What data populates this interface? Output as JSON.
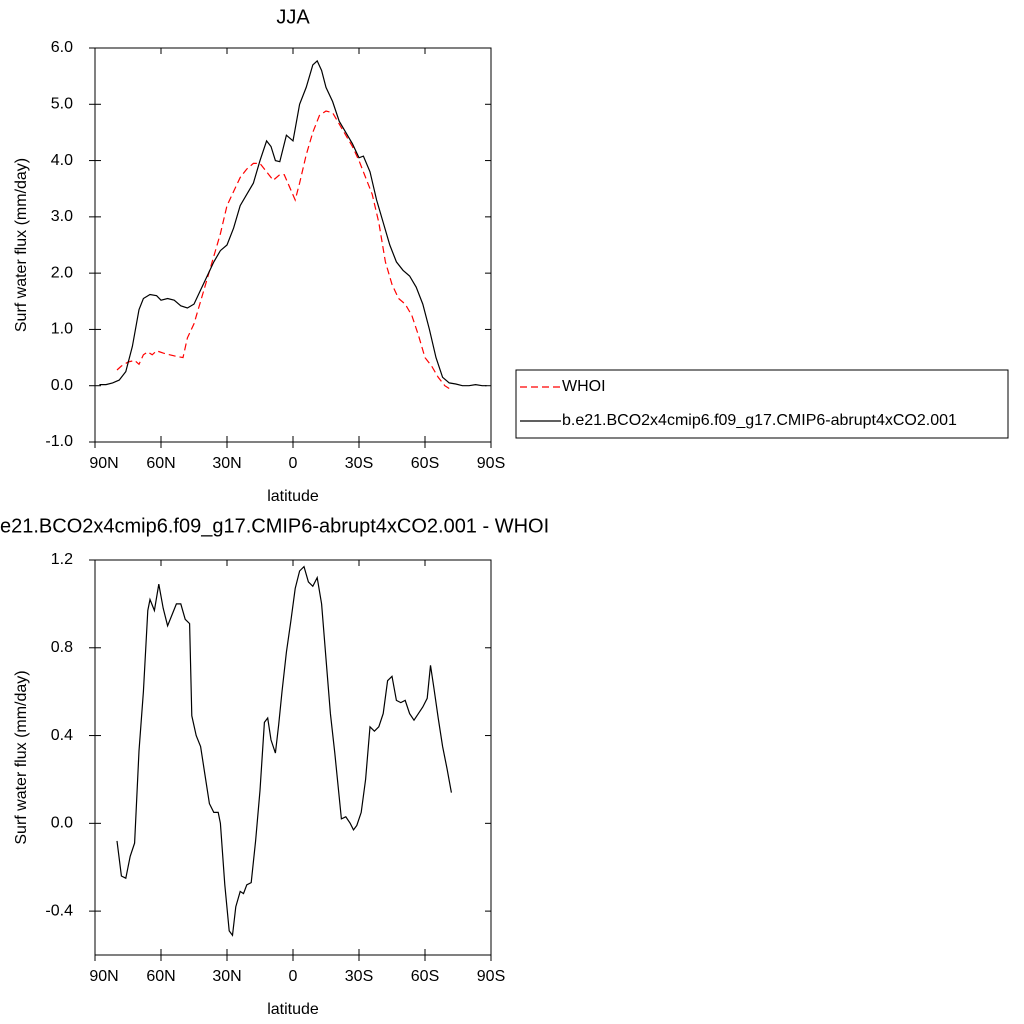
{
  "chart_data": [
    {
      "type": "line",
      "title": "JJA",
      "x_label": "latitude",
      "y_label": "Surf water flux (mm/day)",
      "xlim": [
        90,
        -90
      ],
      "ylim": [
        -1.0,
        6.0
      ],
      "xticks": [
        {
          "value": 90,
          "label": "90N"
        },
        {
          "value": 60,
          "label": "60N"
        },
        {
          "value": 30,
          "label": "30N"
        },
        0,
        {
          "value": -30,
          "label": "30S"
        },
        {
          "value": -60,
          "label": "60S"
        },
        {
          "value": -90,
          "label": "90S"
        }
      ],
      "yticks": [
        {
          "value": -1,
          "label": "-1.0"
        },
        {
          "value": 0,
          "label": "0.0"
        },
        {
          "value": 1,
          "label": "1.0"
        },
        {
          "value": 2,
          "label": "2.0"
        },
        {
          "value": 3,
          "label": "3.0"
        },
        {
          "value": 4,
          "label": "4.0"
        },
        {
          "value": 5,
          "label": "5.0"
        },
        {
          "value": 6,
          "label": "6.0"
        }
      ],
      "legend": "right",
      "series": [
        {
          "name": "WHOI",
          "color": "#ff0000",
          "line_style": "dashed",
          "x": [
            80,
            78,
            75,
            72,
            70,
            68,
            66,
            64,
            62,
            59,
            56,
            53,
            50,
            48,
            45,
            42,
            39,
            36,
            33,
            30,
            27,
            24,
            21,
            18,
            15,
            12,
            9,
            6,
            4,
            -1,
            -3,
            -6,
            -9,
            -12,
            -15,
            -18,
            -21,
            -24,
            -27,
            -30,
            -33,
            -36,
            -39,
            -42,
            -45,
            -48,
            -51,
            -54,
            -57,
            -60,
            -63,
            -66,
            -69,
            -71
          ],
          "values": [
            0.28,
            0.35,
            0.42,
            0.45,
            0.38,
            0.55,
            0.6,
            0.55,
            0.62,
            0.58,
            0.55,
            0.52,
            0.5,
            0.85,
            1.1,
            1.5,
            1.9,
            2.3,
            2.7,
            3.2,
            3.45,
            3.7,
            3.85,
            3.95,
            3.95,
            3.8,
            3.65,
            3.75,
            3.75,
            3.3,
            3.6,
            4.1,
            4.5,
            4.8,
            4.88,
            4.85,
            4.65,
            4.45,
            4.25,
            4.0,
            3.7,
            3.4,
            2.9,
            2.2,
            1.8,
            1.55,
            1.45,
            1.25,
            0.9,
            0.5,
            0.35,
            0.15,
            0.0,
            -0.05
          ]
        },
        {
          "name": "b.e21.BCO2x4cmip6.f09_g17.CMIP6-abrupt4xCO2.001",
          "color": "#000000",
          "line_style": "solid",
          "x": [
            88,
            85,
            82,
            79,
            76,
            73,
            70,
            68,
            65,
            62,
            60,
            57,
            54,
            51,
            48,
            45,
            42,
            39,
            36,
            33,
            30,
            27,
            24,
            21,
            18,
            15,
            12,
            10,
            8,
            6,
            3,
            0,
            -3,
            -6,
            -9,
            -11,
            -13,
            -15,
            -18,
            -21,
            -24,
            -27,
            -30,
            -32,
            -35,
            -38,
            -41,
            -44,
            -47,
            -50,
            -53,
            -56,
            -59,
            -62,
            -65,
            -68,
            -71,
            -74,
            -77,
            -80,
            -83,
            -86,
            -88
          ],
          "values": [
            0.02,
            0.02,
            0.05,
            0.1,
            0.25,
            0.7,
            1.35,
            1.55,
            1.62,
            1.6,
            1.52,
            1.55,
            1.52,
            1.42,
            1.38,
            1.45,
            1.7,
            1.95,
            2.2,
            2.4,
            2.5,
            2.8,
            3.2,
            3.4,
            3.6,
            4.0,
            4.35,
            4.25,
            4.0,
            3.98,
            4.45,
            4.35,
            5.0,
            5.3,
            5.7,
            5.77,
            5.6,
            5.3,
            5.05,
            4.7,
            4.5,
            4.3,
            4.05,
            4.08,
            3.8,
            3.3,
            2.9,
            2.5,
            2.2,
            2.05,
            1.95,
            1.75,
            1.45,
            1.0,
            0.5,
            0.15,
            0.05,
            0.03,
            0.0,
            0.0,
            0.02,
            0.0,
            0.0
          ]
        }
      ]
    },
    {
      "type": "line",
      "title": "e21.BCO2x4cmip6.f09_g17.CMIP6-abrupt4xCO2.001 - WHOI",
      "x_label": "latitude",
      "y_label": "Surf water flux (mm/day)",
      "xlim": [
        90,
        -90
      ],
      "ylim": [
        -0.6,
        1.2
      ],
      "xticks": [
        {
          "value": 90,
          "label": "90N"
        },
        {
          "value": 60,
          "label": "60N"
        },
        {
          "value": 30,
          "label": "30N"
        },
        0,
        {
          "value": -30,
          "label": "30S"
        },
        {
          "value": -60,
          "label": "60S"
        },
        {
          "value": -90,
          "label": "90S"
        }
      ],
      "yticks": [
        -0.4,
        {
          "value": 0,
          "label": "0.0"
        },
        0.4,
        0.8,
        1.2
      ],
      "color": "#000000",
      "x": [
        80,
        78,
        76,
        74,
        72,
        70,
        68,
        66,
        65,
        63,
        61,
        59,
        57,
        55,
        53,
        51,
        49,
        47,
        46,
        44,
        42,
        40,
        38,
        36,
        34,
        33,
        31,
        29,
        27.5,
        26,
        24,
        22.5,
        21,
        19,
        17,
        15,
        13,
        11.5,
        10,
        8,
        6.5,
        5,
        3,
        1,
        -1,
        -3,
        -5,
        -7,
        -9,
        -11,
        -13,
        -15,
        -17,
        -19,
        -22,
        -24,
        -26,
        -27.5,
        -29,
        -31,
        -33,
        -35,
        -37,
        -39,
        -41,
        -43,
        -45,
        -47,
        -49,
        -51,
        -53,
        -55,
        -57,
        -59,
        -61,
        -62.5,
        -64,
        -66,
        -68,
        -70,
        -72
      ],
      "values": [
        -0.08,
        -0.24,
        -0.25,
        -0.15,
        -0.09,
        0.33,
        0.6,
        0.97,
        1.02,
        0.97,
        1.09,
        0.98,
        0.9,
        0.95,
        1.0,
        1.0,
        0.93,
        0.91,
        0.49,
        0.4,
        0.35,
        0.22,
        0.09,
        0.05,
        0.05,
        0.0,
        -0.28,
        -0.49,
        -0.51,
        -0.38,
        -0.31,
        -0.32,
        -0.28,
        -0.27,
        -0.08,
        0.15,
        0.46,
        0.48,
        0.38,
        0.32,
        0.45,
        0.6,
        0.78,
        0.92,
        1.07,
        1.15,
        1.17,
        1.1,
        1.08,
        1.12,
        1.0,
        0.75,
        0.5,
        0.32,
        0.02,
        0.03,
        0.0,
        -0.03,
        -0.01,
        0.05,
        0.2,
        0.44,
        0.42,
        0.44,
        0.5,
        0.65,
        0.67,
        0.56,
        0.55,
        0.56,
        0.5,
        0.47,
        0.5,
        0.53,
        0.57,
        0.72,
        0.62,
        0.48,
        0.35,
        0.25,
        0.14
      ]
    }
  ]
}
